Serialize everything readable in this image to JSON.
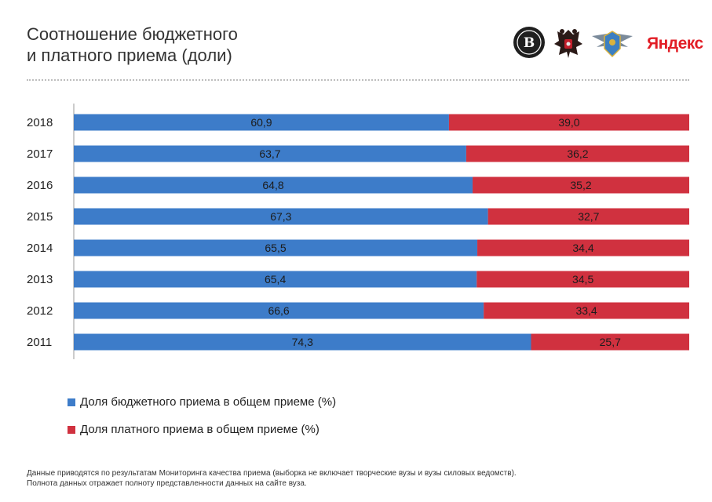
{
  "title_lines": [
    "Соотношение бюджетного",
    "и платного приема (доли)"
  ],
  "logos": {
    "hse": "hse-logo",
    "coat_of_arms": "russia-coat-of-arms-logo",
    "rosobrnadzor": "rosobrnadzor-emblem-logo",
    "yandex_text": "Яндекс"
  },
  "colors": {
    "budget": "#3d7cc9",
    "paid": "#d0313f",
    "axis": "#999999"
  },
  "chart_data": {
    "type": "bar",
    "orientation": "horizontal",
    "stacked": true,
    "normalized": true,
    "categories": [
      "2018",
      "2017",
      "2016",
      "2015",
      "2014",
      "2013",
      "2012",
      "2011"
    ],
    "series": [
      {
        "name": "Доля бюджетного приема в общем приеме (%)",
        "values": [
          60.9,
          63.7,
          64.8,
          67.3,
          65.5,
          65.4,
          66.6,
          74.3
        ],
        "labels": [
          "60,9",
          "63,7",
          "64,8",
          "67,3",
          "65,5",
          "65,4",
          "66,6",
          "74,3"
        ],
        "color": "#3d7cc9"
      },
      {
        "name": "Доля платного приема в общем приеме (%)",
        "values": [
          39.0,
          36.2,
          35.2,
          32.7,
          34.4,
          34.5,
          33.4,
          25.7
        ],
        "labels": [
          "39,0",
          "36,2",
          "35,2",
          "32,7",
          "34,4",
          "34,5",
          "33,4",
          "25,7"
        ],
        "color": "#d0313f"
      }
    ],
    "legend_position": "bottom-left",
    "grid": false
  },
  "footnote_lines": [
    "Данные приводятся по результатам Мониторинга качества приема (выборка не включает творческие вузы и вузы силовых ведомств).",
    "Полнота данных отражает полноту представленности данных на сайте вуза."
  ]
}
